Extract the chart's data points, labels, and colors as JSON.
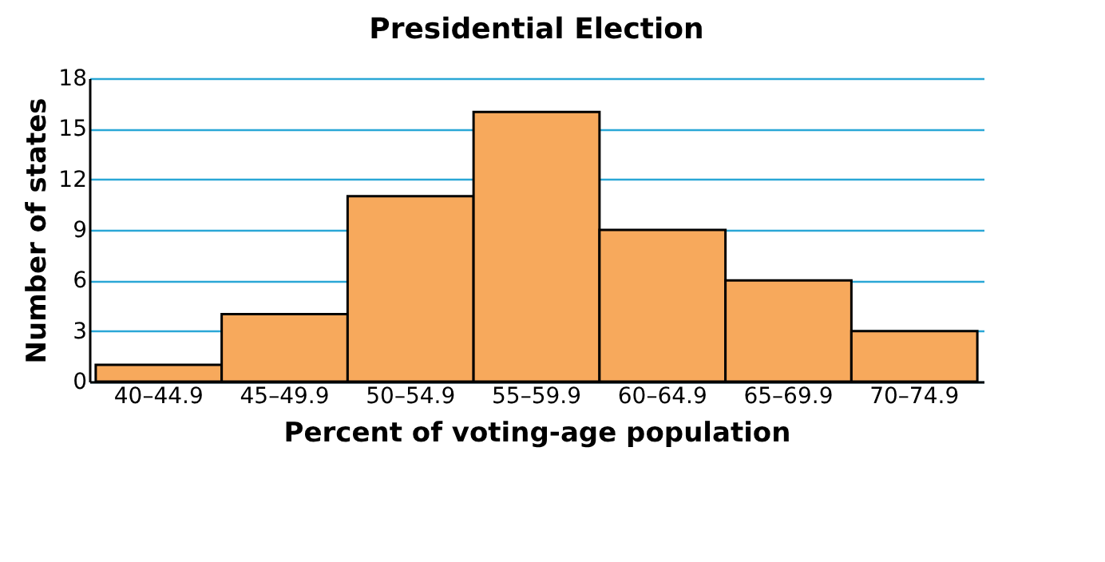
{
  "chart_data": {
    "type": "bar",
    "title": "Presidential Election",
    "xlabel": "Percent of voting-age population",
    "ylabel": "Number of states",
    "categories": [
      "40–44.9",
      "45–49.9",
      "50–54.9",
      "55–59.9",
      "60–64.9",
      "65–69.9",
      "70–74.9"
    ],
    "values": [
      1,
      4,
      11,
      16,
      9,
      6,
      3
    ],
    "color": "#f7a95c",
    "ylim": [
      0,
      18
    ],
    "yticks": [
      0,
      3,
      6,
      9,
      12,
      15,
      18
    ],
    "grid": "y"
  }
}
